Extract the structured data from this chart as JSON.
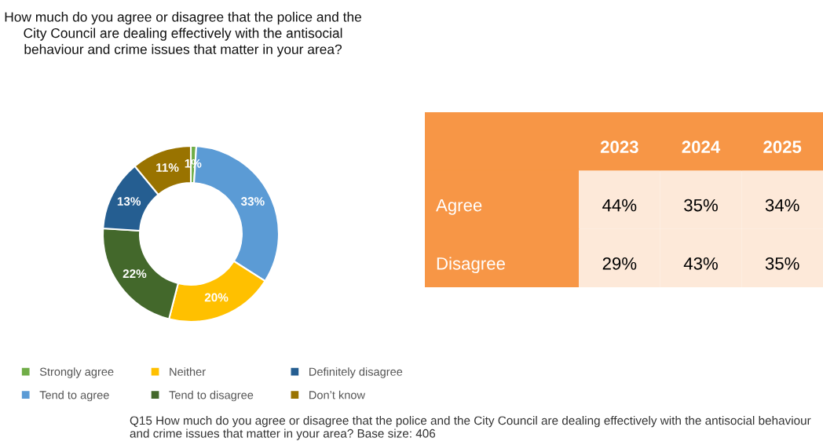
{
  "chart_data": [
    {
      "type": "donut",
      "title": "How much do you agree or disagree that the police and the City Council are dealing effectively with the antisocial behaviour and crime issues that matter in your area?",
      "categories": [
        "Strongly agree",
        "Tend to agree",
        "Neither",
        "Tend to disagree",
        "Definitely disagree",
        "Don’t know"
      ],
      "values": [
        1,
        33,
        20,
        22,
        13,
        11
      ],
      "colors": [
        "#70ad47",
        "#5b9bd5",
        "#ffc000",
        "#43682b",
        "#255e91",
        "#997300"
      ],
      "value_labels": [
        "1%",
        "33%",
        "20%",
        "22%",
        "13%",
        "11%"
      ],
      "legend": "bottom",
      "annotations": [
        "Q15 How much do you agree or disagree that the police and the City Council are dealing effectively with the antisocial behaviour and crime issues that matter in your area? Base size: 406"
      ]
    },
    {
      "type": "other",
      "categories": [
        "2023",
        "2024",
        "2025"
      ],
      "y_categories": [
        "Agree",
        "Disagree"
      ],
      "cell_labels": [
        [
          "44%",
          "35%",
          "34%"
        ],
        [
          "29%",
          "43%",
          "35%"
        ]
      ],
      "colors": [
        "#f79646",
        "#fde9d9"
      ]
    }
  ]
}
